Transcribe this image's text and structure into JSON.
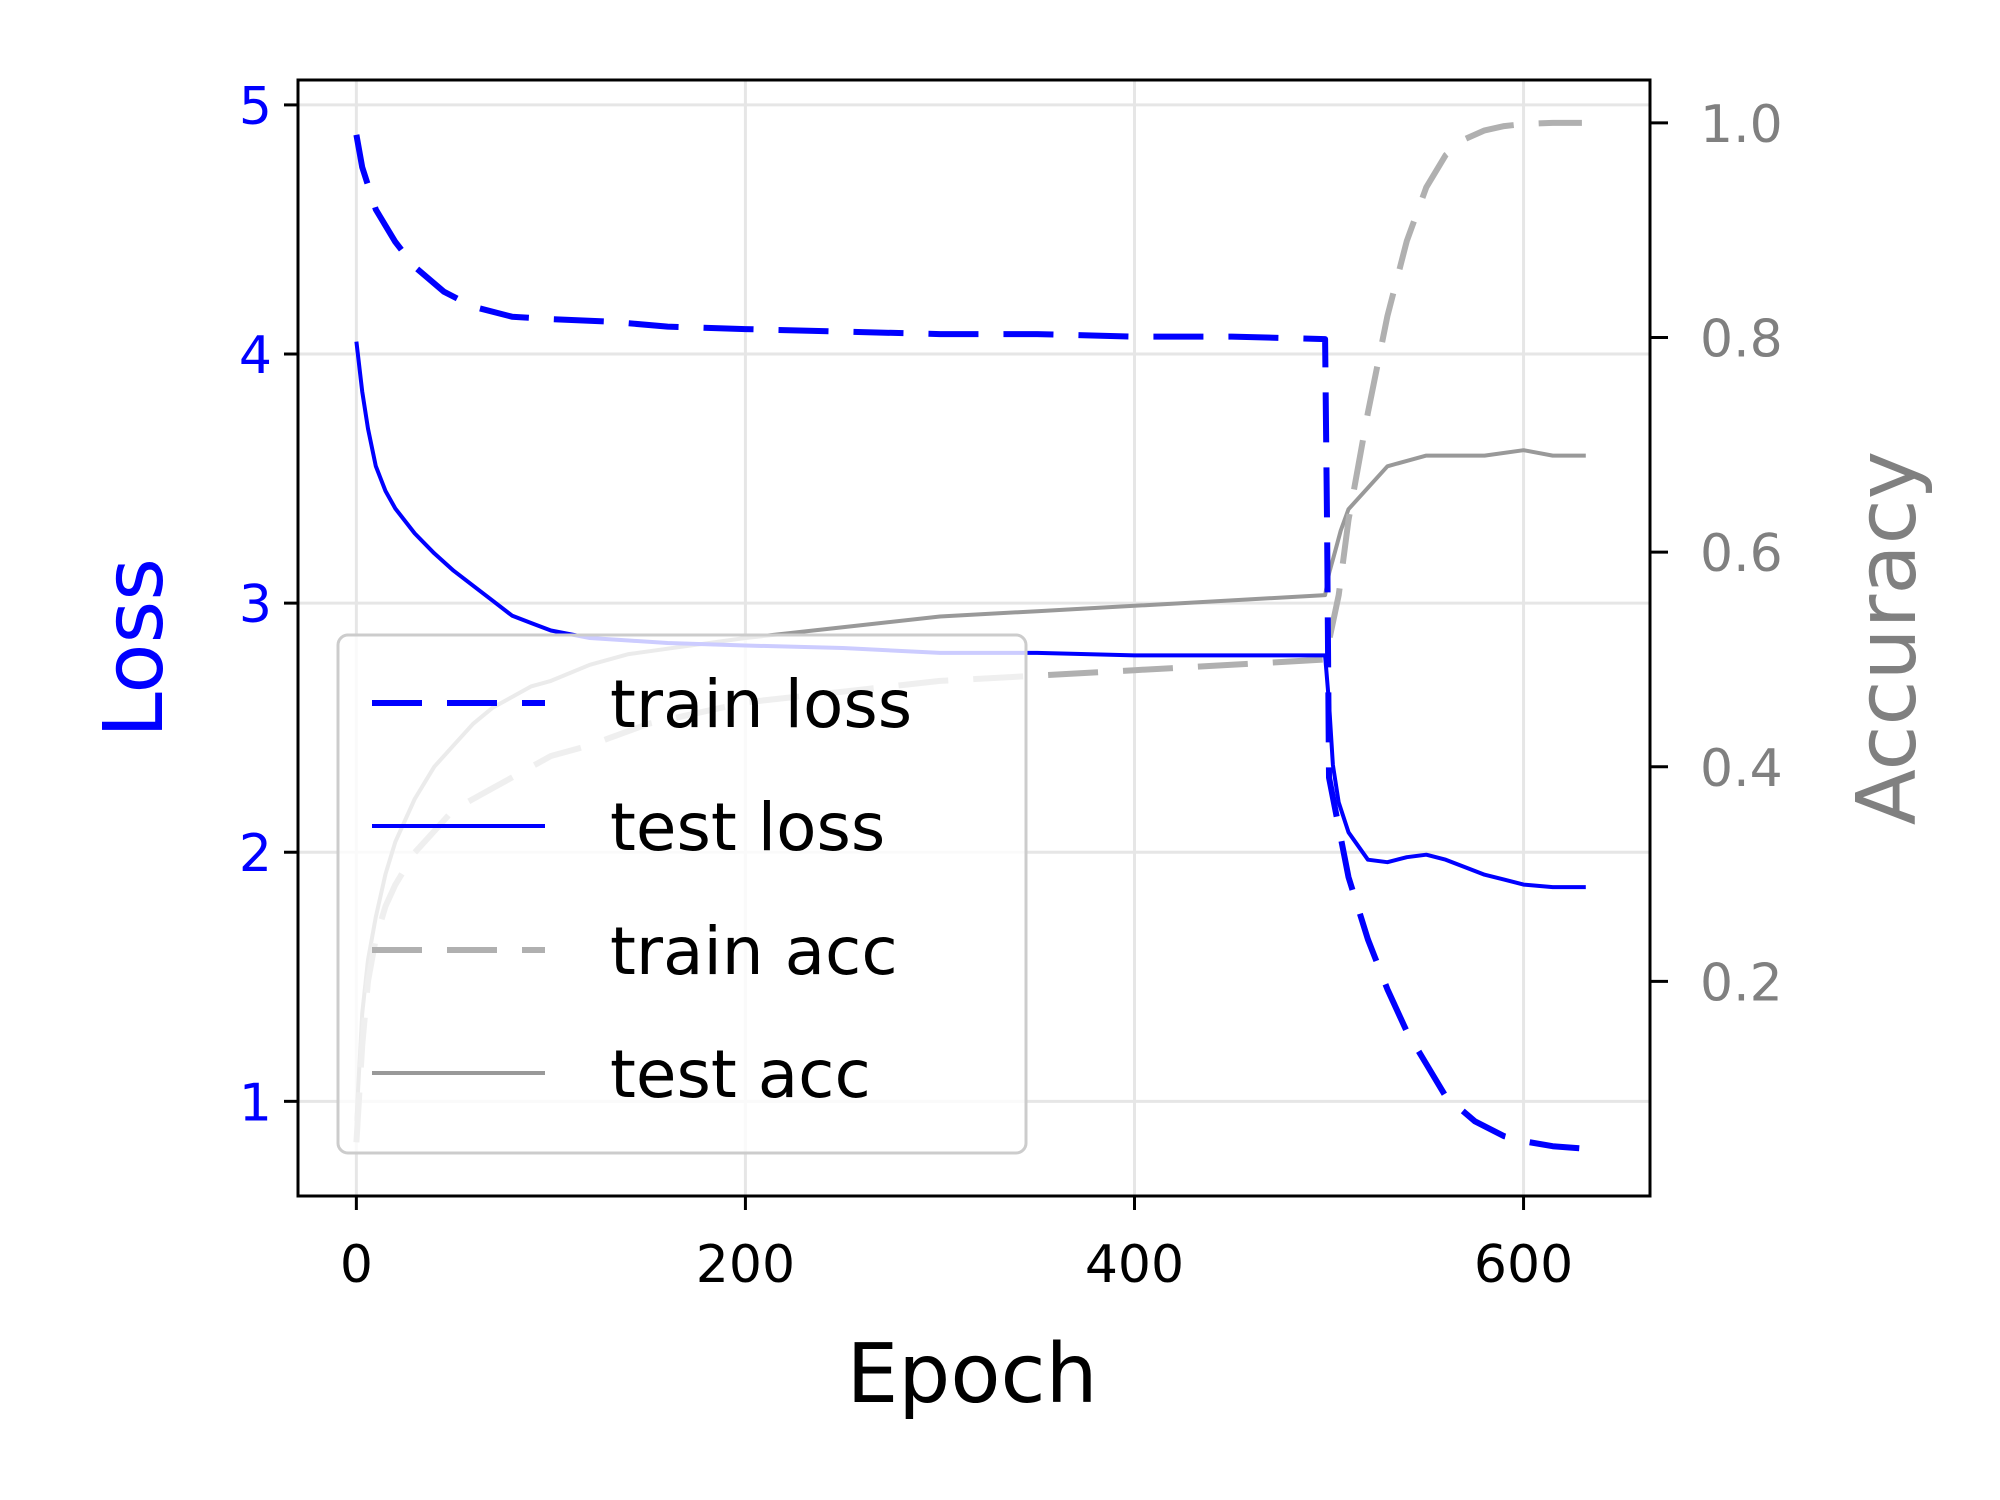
{
  "chart_data": {
    "type": "line",
    "xlabel": "Epoch",
    "ylabel_left": "Loss",
    "ylabel_right": "Accuracy",
    "xlim": [
      -30,
      665
    ],
    "ylim_left": [
      0.62,
      5.1
    ],
    "ylim_right": [
      0.0,
      1.04
    ],
    "x_ticks": [
      0,
      200,
      400,
      600
    ],
    "y_left_ticks": [
      1,
      2,
      3,
      4,
      5
    ],
    "y_right_ticks": [
      0.2,
      0.4,
      0.6,
      0.8,
      1.0
    ],
    "x_tick_labels": [
      "0",
      "200",
      "400",
      "600"
    ],
    "y_left_tick_labels": [
      "1",
      "2",
      "3",
      "4",
      "5"
    ],
    "y_right_tick_labels": [
      "0.2",
      "0.4",
      "0.6",
      "0.8",
      "1.0"
    ],
    "grid": true,
    "legend_position": "lower-left",
    "colors": {
      "train_loss": "#0000ff",
      "test_loss": "#0000ff",
      "train_acc": "#b0b0b0",
      "test_acc": "#999999",
      "left_axis": "#0000ff",
      "right_axis": "#808080"
    },
    "series": [
      {
        "name": "train loss",
        "axis": "left",
        "style": "dashed",
        "x": [
          0,
          3,
          10,
          20,
          30,
          45,
          60,
          80,
          100,
          130,
          160,
          200,
          250,
          300,
          350,
          400,
          450,
          498,
          499,
          500,
          510,
          520,
          530,
          540,
          550,
          560,
          575,
          590,
          600,
          615,
          632
        ],
        "y": [
          4.88,
          4.75,
          4.58,
          4.45,
          4.35,
          4.25,
          4.19,
          4.15,
          4.14,
          4.13,
          4.11,
          4.1,
          4.09,
          4.08,
          4.08,
          4.07,
          4.07,
          4.06,
          3.3,
          2.3,
          1.9,
          1.65,
          1.45,
          1.28,
          1.15,
          1.02,
          0.92,
          0.86,
          0.84,
          0.82,
          0.81
        ]
      },
      {
        "name": "test loss",
        "axis": "left",
        "style": "solid",
        "x": [
          0,
          3,
          6,
          10,
          15,
          20,
          30,
          40,
          50,
          60,
          70,
          80,
          90,
          100,
          120,
          140,
          160,
          200,
          250,
          300,
          350,
          400,
          450,
          498,
          500,
          502,
          505,
          510,
          520,
          530,
          540,
          550,
          560,
          570,
          580,
          590,
          600,
          615,
          632
        ],
        "y": [
          4.05,
          3.85,
          3.7,
          3.55,
          3.45,
          3.38,
          3.28,
          3.2,
          3.13,
          3.07,
          3.01,
          2.95,
          2.92,
          2.89,
          2.86,
          2.85,
          2.84,
          2.83,
          2.82,
          2.8,
          2.8,
          2.79,
          2.79,
          2.79,
          2.6,
          2.35,
          2.2,
          2.08,
          1.97,
          1.96,
          1.98,
          1.99,
          1.97,
          1.94,
          1.91,
          1.89,
          1.87,
          1.86,
          1.86
        ]
      },
      {
        "name": "train acc",
        "axis": "right",
        "style": "dashed",
        "x": [
          0,
          3,
          6,
          10,
          15,
          20,
          30,
          40,
          50,
          60,
          70,
          80,
          100,
          120,
          150,
          200,
          250,
          300,
          350,
          400,
          450,
          498,
          505,
          510,
          520,
          530,
          540,
          550,
          560,
          570,
          580,
          590,
          600,
          615,
          630
        ],
        "y": [
          0.05,
          0.14,
          0.2,
          0.24,
          0.27,
          0.29,
          0.32,
          0.34,
          0.36,
          0.37,
          0.38,
          0.39,
          0.41,
          0.42,
          0.44,
          0.46,
          0.47,
          0.48,
          0.485,
          0.49,
          0.495,
          0.5,
          0.56,
          0.63,
          0.73,
          0.82,
          0.89,
          0.94,
          0.97,
          0.985,
          0.993,
          0.997,
          0.999,
          1.0,
          1.0
        ]
      },
      {
        "name": "test acc",
        "axis": "right",
        "style": "solid",
        "x": [
          0,
          3,
          6,
          10,
          15,
          20,
          30,
          40,
          50,
          60,
          70,
          80,
          90,
          100,
          120,
          140,
          160,
          200,
          250,
          300,
          350,
          400,
          450,
          498,
          500,
          503,
          506,
          510,
          520,
          530,
          540,
          550,
          560,
          580,
          600,
          615,
          632
        ],
        "y": [
          0.07,
          0.17,
          0.22,
          0.26,
          0.3,
          0.33,
          0.37,
          0.4,
          0.42,
          0.44,
          0.455,
          0.465,
          0.475,
          0.48,
          0.495,
          0.505,
          0.51,
          0.52,
          0.53,
          0.54,
          0.545,
          0.55,
          0.555,
          0.56,
          0.58,
          0.6,
          0.62,
          0.64,
          0.66,
          0.68,
          0.685,
          0.69,
          0.69,
          0.69,
          0.695,
          0.69,
          0.69
        ]
      }
    ]
  }
}
